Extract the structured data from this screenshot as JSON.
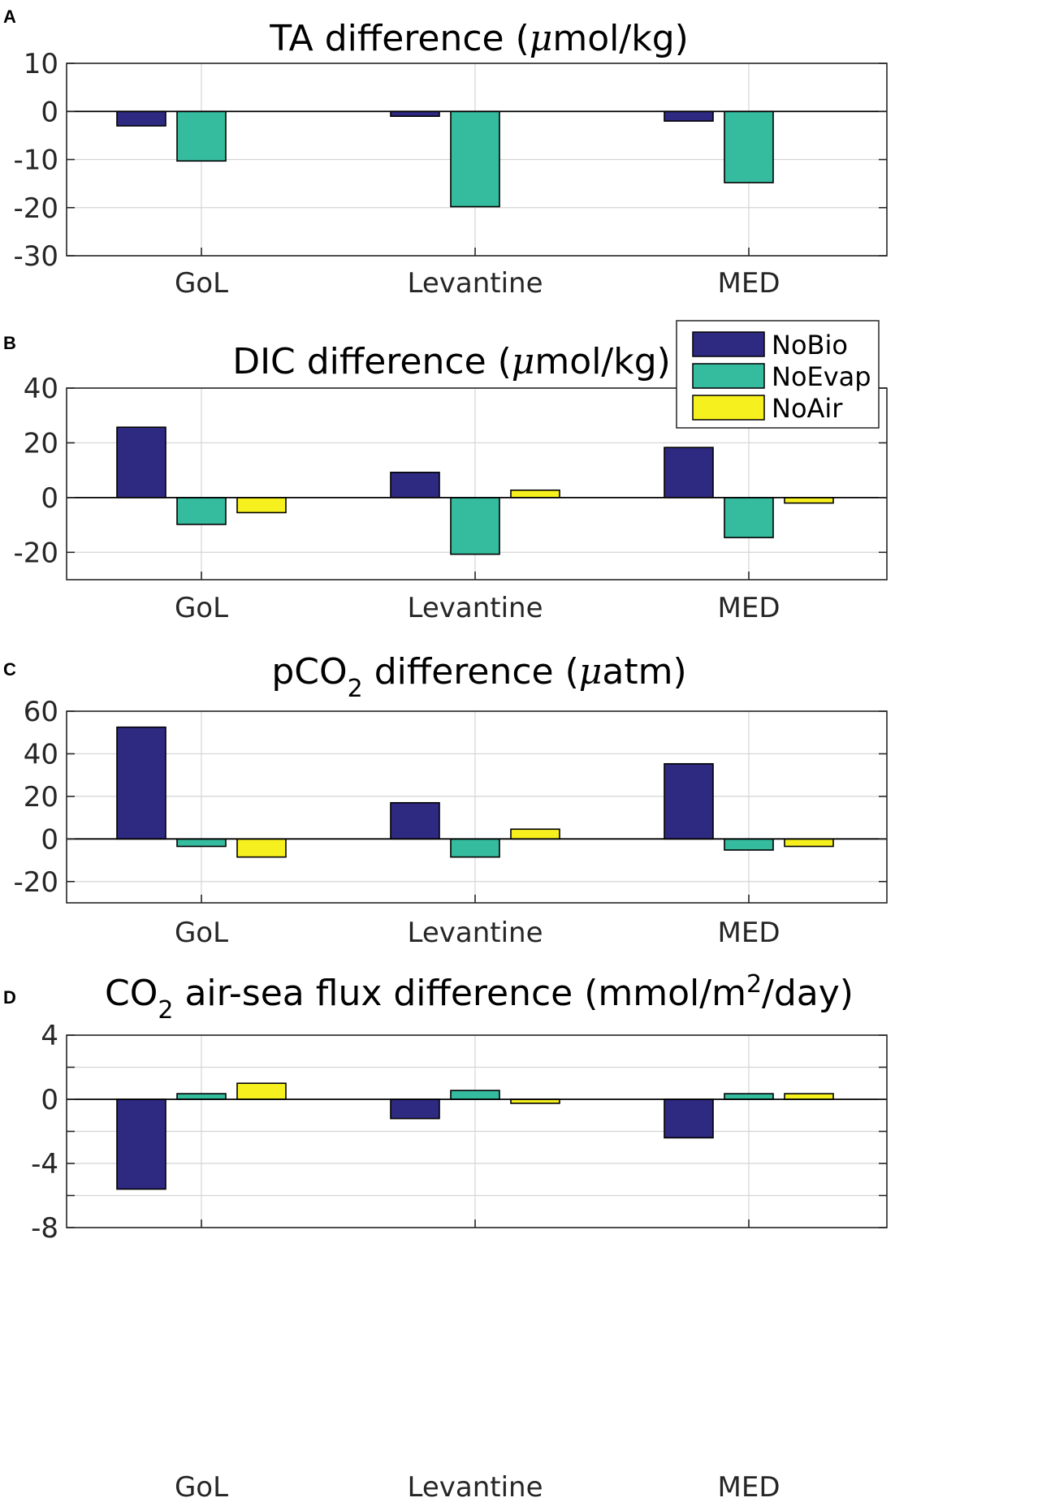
{
  "colors": {
    "NoBio": "#2e2a82",
    "NoEvap": "#35bb9e",
    "NoAir": "#f7f01f",
    "axis": "#262626",
    "grid": "#d4d4d4"
  },
  "legend": {
    "placement": "inside-top-right of panel B",
    "items": [
      "NoBio",
      "NoEvap",
      "NoAir"
    ]
  },
  "chart_data": [
    {
      "panel": "A",
      "type": "bar",
      "title": {
        "pre": "TA difference (",
        "mu": "μ",
        "post": "mol/kg)"
      },
      "categories": [
        "GoL",
        "Levantine",
        "MED"
      ],
      "series": [
        {
          "name": "NoBio",
          "values": [
            -3,
            -1,
            -2
          ]
        },
        {
          "name": "NoEvap",
          "values": [
            -10.3,
            -19.8,
            -14.8
          ]
        }
      ],
      "ylim": [
        -30,
        10
      ],
      "yticks": [
        10,
        0,
        -10,
        -20,
        -30
      ],
      "ytick_labels": [
        "10",
        "0",
        "-10",
        "-20",
        "-30"
      ],
      "grid": true
    },
    {
      "panel": "B",
      "type": "bar",
      "title": {
        "pre": "DIC difference (",
        "mu": "μ",
        "post": "mol/kg)"
      },
      "categories": [
        "GoL",
        "Levantine",
        "MED"
      ],
      "series": [
        {
          "name": "NoBio",
          "values": [
            25.7,
            9.2,
            18.3
          ]
        },
        {
          "name": "NoEvap",
          "values": [
            -9.8,
            -20.7,
            -14.6
          ]
        },
        {
          "name": "NoAir",
          "values": [
            -5.5,
            2.7,
            -2
          ]
        }
      ],
      "ylim": [
        -30,
        40
      ],
      "yticks": [
        40,
        20,
        0,
        -20
      ],
      "ytick_labels": [
        "40",
        "20",
        "0",
        "-20"
      ],
      "grid": true
    },
    {
      "panel": "C",
      "type": "bar",
      "title": {
        "pre": "pCO",
        "sub": "2",
        "post": " difference (",
        "mu": "μ",
        "post2": "atm)"
      },
      "categories": [
        "GoL",
        "Levantine",
        "MED"
      ],
      "series": [
        {
          "name": "NoBio",
          "values": [
            52.5,
            17,
            35.3
          ]
        },
        {
          "name": "NoEvap",
          "values": [
            -3.5,
            -8.5,
            -5.2
          ]
        },
        {
          "name": "NoAir",
          "values": [
            -8.5,
            4.6,
            -3.5
          ]
        }
      ],
      "ylim": [
        -30,
        60
      ],
      "yticks": [
        60,
        40,
        20,
        0,
        -20
      ],
      "ytick_labels": [
        "60",
        "40",
        "20",
        "0",
        "-20"
      ],
      "grid": true
    },
    {
      "panel": "D",
      "type": "bar",
      "title": {
        "pre": "CO",
        "sub": "2",
        "mid": " air-sea flux difference (mmol/m",
        "sup": "2",
        "post": "/day)"
      },
      "categories": [
        "GoL",
        "Levantine",
        "MED"
      ],
      "series": [
        {
          "name": "NoBio",
          "values": [
            -5.6,
            -1.2,
            -2.4
          ]
        },
        {
          "name": "NoEvap",
          "values": [
            0.35,
            0.55,
            0.35
          ]
        },
        {
          "name": "NoAir",
          "values": [
            1,
            -0.25,
            0.35
          ]
        }
      ],
      "ylim": [
        -8,
        4
      ],
      "yticks": [
        4,
        2,
        0,
        -2,
        -4,
        -6,
        -8
      ],
      "ytick_labels": [
        "4",
        "",
        "0",
        "",
        "-4",
        "",
        "-8"
      ],
      "grid": true
    }
  ]
}
